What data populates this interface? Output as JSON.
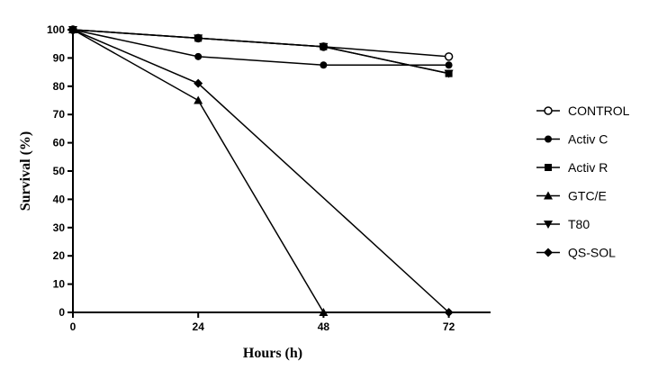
{
  "chart_data": {
    "type": "line",
    "xlabel": "Hours (h)",
    "ylabel": "Survival (%)",
    "xlim": [
      0,
      80
    ],
    "ylim": [
      0,
      100
    ],
    "xticks": [
      0,
      24,
      48,
      72
    ],
    "yticks": [
      0,
      10,
      20,
      30,
      40,
      50,
      60,
      70,
      80,
      90,
      100
    ],
    "grid": false,
    "legend_position": "right",
    "series": [
      {
        "name": "CONTROL",
        "marker": "circle-open",
        "x": [
          0,
          24,
          48,
          72
        ],
        "y": [
          100,
          97,
          94,
          90.5
        ]
      },
      {
        "name": "Activ C",
        "marker": "circle",
        "x": [
          0,
          24,
          48,
          72
        ],
        "y": [
          100,
          90.5,
          87.5,
          87.5
        ]
      },
      {
        "name": "Activ R",
        "marker": "square",
        "x": [
          0,
          24,
          48,
          72
        ],
        "y": [
          100,
          97,
          94,
          84.5
        ]
      },
      {
        "name": "GTC/E",
        "marker": "triangle-up",
        "x": [
          0,
          24,
          48
        ],
        "y": [
          100,
          75,
          0
        ]
      },
      {
        "name": "T80",
        "marker": "triangle-down",
        "x": [
          0,
          24,
          48,
          72
        ],
        "y": [
          100,
          97,
          94,
          84.5
        ]
      },
      {
        "name": "QS-SOL",
        "marker": "diamond",
        "x": [
          0,
          24,
          72
        ],
        "y": [
          100,
          81,
          0
        ]
      }
    ]
  }
}
